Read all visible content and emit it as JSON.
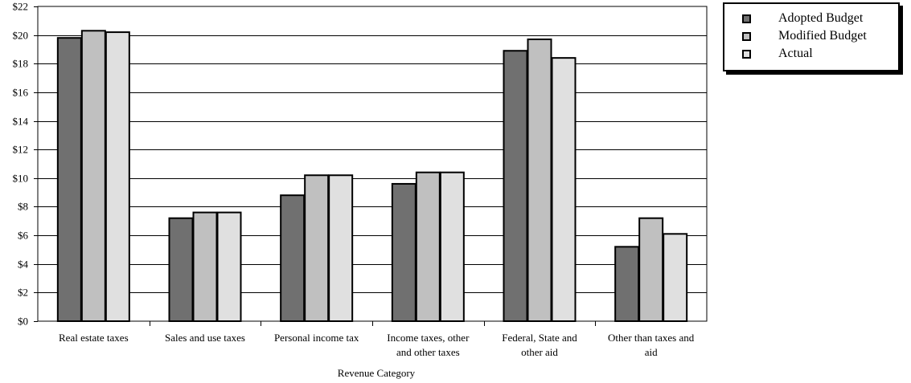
{
  "chart_data": {
    "type": "bar",
    "categories": [
      [
        "Real estate taxes"
      ],
      [
        "Sales and use taxes"
      ],
      [
        "Personal income tax"
      ],
      [
        "Income taxes, other",
        "and other taxes"
      ],
      [
        "Federal, State and",
        "other aid"
      ],
      [
        "Other than taxes and",
        "aid"
      ]
    ],
    "series": [
      {
        "name": "Adopted Budget",
        "color": "#707070",
        "values": [
          19.8,
          7.2,
          8.8,
          9.6,
          18.9,
          5.2
        ]
      },
      {
        "name": "Modified Budget",
        "color": "#c0c0c0",
        "values": [
          20.3,
          7.6,
          10.2,
          10.4,
          19.7,
          7.2
        ]
      },
      {
        "name": "Actual",
        "color": "#e0e0e0",
        "values": [
          20.2,
          7.6,
          10.2,
          10.4,
          18.4,
          6.1
        ]
      }
    ],
    "xlabel": "Revenue Category",
    "ylabel": "",
    "ylim": [
      0,
      22
    ],
    "yticks": [
      0,
      2,
      4,
      6,
      8,
      10,
      12,
      14,
      16,
      18,
      20,
      22
    ],
    "ytick_labels": [
      "$0",
      "$2",
      "$4",
      "$6",
      "$8",
      "$10",
      "$12",
      "$14",
      "$16",
      "$18",
      "$20",
      "$22"
    ],
    "grid": true,
    "legend_position": "top-right"
  }
}
